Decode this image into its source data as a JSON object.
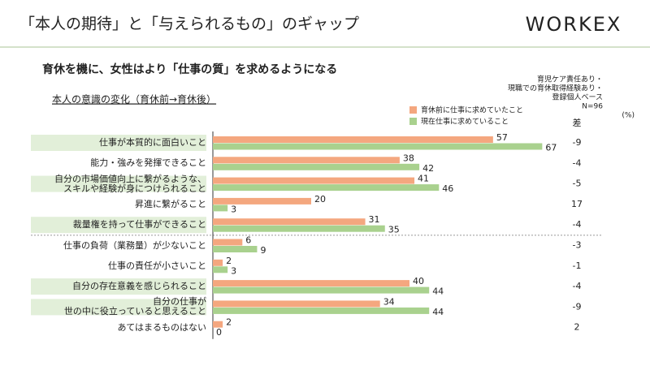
{
  "header": {
    "title": "「本人の期待」と「与えられるもの」のギャップ",
    "logo": "WORKEX"
  },
  "chart_data": {
    "type": "bar",
    "orientation": "horizontal",
    "title": "育休を機に、女性はより「仕事の質」を求めるようになる",
    "subtitle": "本人の意識の変化（育休前→育休後）",
    "note": [
      "育児ケア責任あり・",
      "現職での育休取得経験あり・",
      "登録個人ベース",
      "N=96"
    ],
    "unit": "(%)",
    "categories": [
      "仕事が本質的に面白いこと",
      "能力・強みを発揮できること",
      "自分の市場価値向上に繋がるような、\nスキルや経験が身につけられること",
      "昇進に繋がること",
      "裁量権を持って仕事ができること",
      "仕事の負荷（業務量）が少ないこと",
      "仕事の責任が小さいこと",
      "自分の存在意義を感じられること",
      "自分の仕事が\n世の中に役立っていると思えること",
      "あてはまるものはない"
    ],
    "series": [
      {
        "name": "育休前に仕事に求めていたこと",
        "color": "#f4a77f",
        "values": [
          57,
          38,
          41,
          20,
          31,
          6,
          2,
          40,
          34,
          2
        ]
      },
      {
        "name": "現在仕事に求めていること",
        "color": "#a9d18e",
        "values": [
          67,
          42,
          46,
          3,
          35,
          9,
          3,
          44,
          44,
          0
        ]
      }
    ],
    "difference_label": "差",
    "differences": [
      -9,
      -4,
      -5,
      17,
      -4,
      -3,
      -1,
      -4,
      -9,
      2
    ],
    "highlight_rows": [
      0,
      2,
      4,
      7,
      8
    ],
    "highlight_color": "#e2efd9",
    "xlim": [
      0,
      100
    ]
  }
}
